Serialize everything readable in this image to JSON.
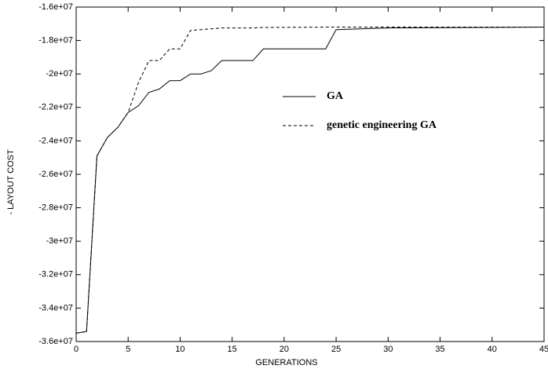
{
  "chart_data": {
    "type": "line",
    "xlabel": "GENERATIONS",
    "ylabel": "- LAYOUT COST",
    "x": [
      0,
      1,
      2,
      3,
      4,
      5,
      6,
      7,
      8,
      9,
      10,
      11,
      12,
      13,
      14,
      17,
      18,
      24,
      25,
      30,
      45
    ],
    "series": [
      {
        "name": "GA",
        "color": "#000000",
        "dash": "solid",
        "values": [
          -35500000,
          -35400000,
          -24900000,
          -23800000,
          -23200000,
          -22300000,
          -21900000,
          -21100000,
          -20900000,
          -20400000,
          -20400000,
          -20000000,
          -20000000,
          -19800000,
          -19200000,
          -19200000,
          -18500000,
          -18500000,
          -17350000,
          -17250000,
          -17200000
        ]
      },
      {
        "name": "genetic engineering GA",
        "color": "#000000",
        "dash": "dashed",
        "values": [
          -35500000,
          -35400000,
          -24900000,
          -23800000,
          -23200000,
          -22300000,
          -20500000,
          -19200000,
          -19200000,
          -18500000,
          -18500000,
          -17400000,
          -17350000,
          -17300000,
          -17250000,
          -17250000,
          -17220000,
          -17200000,
          -17200000,
          -17200000,
          -17200000
        ]
      }
    ],
    "xlim": [
      0,
      45
    ],
    "xticks": [
      0,
      5,
      10,
      15,
      20,
      25,
      30,
      35,
      40,
      45
    ],
    "ylim": [
      -36000000,
      -16000000
    ],
    "yticks": [
      {
        "value": -36000000,
        "label": "-3.6e+07"
      },
      {
        "value": -34000000,
        "label": "-3.4e+07"
      },
      {
        "value": -32000000,
        "label": "-3.2e+07"
      },
      {
        "value": -30000000,
        "label": "-3e+07"
      },
      {
        "value": -28000000,
        "label": "-2.8e+07"
      },
      {
        "value": -26000000,
        "label": "-2.6e+07"
      },
      {
        "value": -24000000,
        "label": "-2.4e+07"
      },
      {
        "value": -22000000,
        "label": "-2.2e+07"
      },
      {
        "value": -20000000,
        "label": "-2e+07"
      },
      {
        "value": -18000000,
        "label": "-1.8e+07"
      },
      {
        "value": -16000000,
        "label": "-1.6e+07"
      }
    ]
  }
}
